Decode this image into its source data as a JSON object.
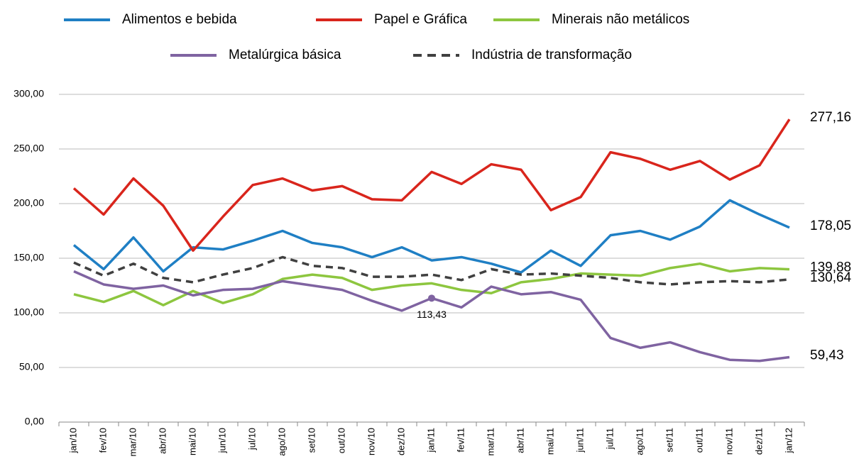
{
  "chart_data": {
    "type": "line",
    "categories": [
      "jan/10",
      "fev/10",
      "mar/10",
      "abr/10",
      "mai/10",
      "jun/10",
      "jul/10",
      "ago/10",
      "set/10",
      "out/10",
      "nov/10",
      "dez/10",
      "jan/11",
      "fev/11",
      "mar/11",
      "abr/11",
      "mai/11",
      "jun/11",
      "jul/11",
      "ago/11",
      "set/11",
      "out/11",
      "nov/11",
      "dez/11",
      "jan/12"
    ],
    "series": [
      {
        "name": "Alimentos e bebida",
        "color": "#1f7fc4",
        "dashed": false,
        "values": [
          162,
          140,
          169,
          138,
          160,
          158,
          166,
          175,
          164,
          160,
          151,
          160,
          148,
          151,
          145,
          137,
          157,
          143,
          171,
          175,
          167,
          179,
          203,
          190,
          178.05
        ],
        "value_labels": [
          null,
          null,
          null,
          null,
          null,
          null,
          null,
          null,
          null,
          null,
          null,
          null,
          null,
          null,
          null,
          null,
          null,
          null,
          null,
          null,
          null,
          null,
          null,
          null,
          "178,05"
        ]
      },
      {
        "name": "Papel e Gráfica",
        "color": "#d9251c",
        "dashed": false,
        "values": [
          214,
          190,
          223,
          198,
          157,
          188,
          217,
          223,
          212,
          216,
          204,
          203,
          229,
          218,
          236,
          231,
          194,
          206,
          247,
          241,
          231,
          239,
          222,
          235,
          277.16
        ],
        "value_labels": [
          null,
          null,
          null,
          null,
          null,
          null,
          null,
          null,
          null,
          null,
          null,
          null,
          null,
          null,
          null,
          null,
          null,
          null,
          null,
          null,
          null,
          null,
          null,
          null,
          "277,16"
        ]
      },
      {
        "name": "Minerais não metálicos",
        "color": "#8dc63f",
        "dashed": false,
        "values": [
          117,
          110,
          120,
          107,
          120,
          109,
          117,
          131,
          135,
          132,
          121,
          125,
          127,
          121,
          118,
          128,
          131,
          136,
          135,
          134,
          141,
          145,
          138,
          141,
          139.88
        ],
        "value_labels": [
          null,
          null,
          null,
          null,
          null,
          null,
          null,
          null,
          null,
          null,
          null,
          null,
          null,
          null,
          null,
          null,
          null,
          null,
          null,
          null,
          null,
          null,
          null,
          null,
          "139,88"
        ]
      },
      {
        "name": "Metalúrgica básica",
        "color": "#7f63a1",
        "dashed": false,
        "values": [
          138,
          126,
          122,
          125,
          116,
          121,
          122,
          129,
          125,
          121,
          111,
          102,
          113.43,
          105,
          124,
          117,
          119,
          112,
          77,
          68,
          73,
          64,
          57,
          56,
          59.43
        ],
        "value_labels": [
          null,
          null,
          null,
          null,
          null,
          null,
          null,
          null,
          null,
          null,
          null,
          null,
          "113,43",
          null,
          null,
          null,
          null,
          null,
          null,
          null,
          null,
          null,
          null,
          null,
          "59,43"
        ]
      },
      {
        "name": "Indústria de transformação",
        "color": "#404040",
        "dashed": true,
        "values": [
          146,
          134,
          145,
          132,
          128,
          135,
          141,
          151,
          143,
          141,
          133,
          133,
          135,
          130,
          140,
          135,
          136,
          134,
          132,
          128,
          126,
          128,
          129,
          128,
          130.64
        ],
        "value_labels": [
          null,
          null,
          null,
          null,
          null,
          null,
          null,
          null,
          null,
          null,
          null,
          null,
          null,
          null,
          null,
          null,
          null,
          null,
          null,
          null,
          null,
          null,
          null,
          null,
          "130,64"
        ]
      }
    ],
    "ylim": [
      0,
      300
    ],
    "yticks": [
      {
        "value": 0,
        "label": "0,00"
      },
      {
        "value": 50,
        "label": "50,00"
      },
      {
        "value": 100,
        "label": "100,00"
      },
      {
        "value": 150,
        "label": "150,00"
      },
      {
        "value": 200,
        "label": "200,00"
      },
      {
        "value": 250,
        "label": "250,00"
      },
      {
        "value": 300,
        "label": "300,00"
      }
    ],
    "grid": true,
    "legend": "top"
  }
}
